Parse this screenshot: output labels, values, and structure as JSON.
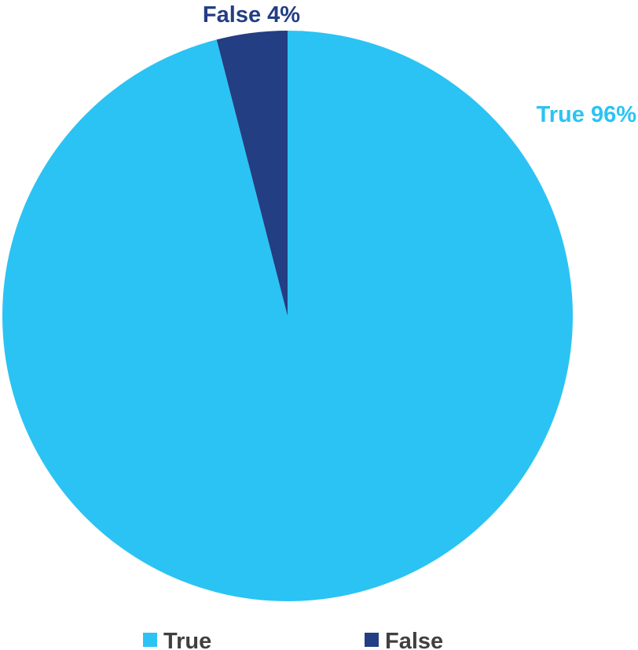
{
  "chart_data": {
    "type": "pie",
    "title": "",
    "legend_position": "bottom",
    "slices": [
      {
        "name": "True",
        "value": 96,
        "label": "True 96%",
        "color": "#2BC3F3"
      },
      {
        "name": "False",
        "value": 4,
        "label": "False 4%",
        "color": "#233E83"
      }
    ]
  }
}
